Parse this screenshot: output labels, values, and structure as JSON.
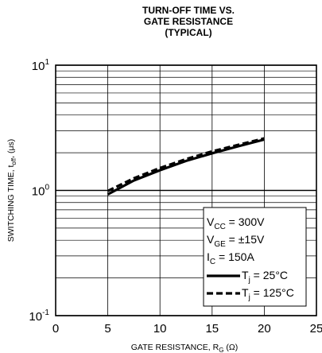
{
  "chart_data": {
    "type": "line",
    "title": [
      "TURN-OFF TIME VS.",
      "GATE RESISTANCE",
      "(TYPICAL)"
    ],
    "xlabel": "GATE RESISTANCE, R",
    "xlabel_subscript": "G",
    "xlabel_unit": "(Ω)",
    "ylabel": "SWITCHING TIME, t",
    "ylabel_subscript": "off",
    "ylabel_unit": ", (μs)",
    "xlim": [
      0,
      25
    ],
    "x_ticks": [
      "0",
      "5",
      "10",
      "15",
      "20",
      "25"
    ],
    "y_scale": "log",
    "ylim": [
      0.1,
      10
    ],
    "y_ticks": [
      {
        "base": "10",
        "exp": "-1"
      },
      {
        "base": "10",
        "exp": "0"
      },
      {
        "base": "10",
        "exp": "1"
      }
    ],
    "grid": true,
    "legend_placement": "bottom-right",
    "conditions": [
      {
        "main": "V",
        "sub": "CC",
        "rest": " = 300V"
      },
      {
        "main": "V",
        "sub": "GE",
        "rest": " = ±15V"
      },
      {
        "main": "I",
        "sub": "C",
        "rest": " = 150A"
      }
    ],
    "series": [
      {
        "name": "25°C",
        "name_prefix": "T",
        "name_sub": "j",
        "name_eq": " = ",
        "style": "solid",
        "x": [
          5,
          7.5,
          10,
          12.5,
          15,
          17.5,
          20
        ],
        "y": [
          0.93,
          1.2,
          1.45,
          1.72,
          1.98,
          2.25,
          2.55
        ]
      },
      {
        "name": "125°C",
        "name_prefix": "T",
        "name_sub": "j",
        "name_eq": " = ",
        "style": "dashed",
        "x": [
          5,
          7.5,
          10,
          12.5,
          15,
          17.5,
          20
        ],
        "y": [
          0.99,
          1.25,
          1.51,
          1.78,
          2.05,
          2.31,
          2.6
        ]
      }
    ]
  }
}
